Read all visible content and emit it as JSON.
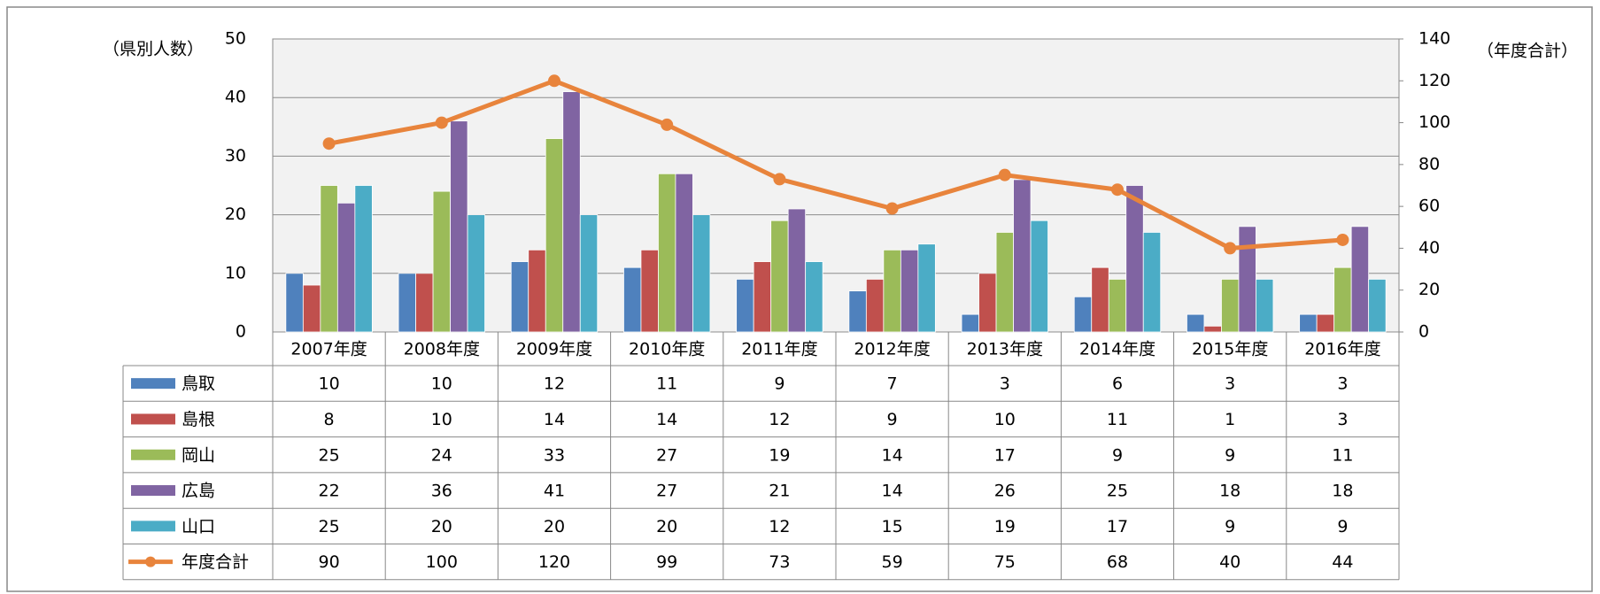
{
  "chart_data": {
    "type": "bar",
    "y_label": "（県別人数）",
    "y2_label": "（年度合計）",
    "categories": [
      "2007年度",
      "2008年度",
      "2009年度",
      "2010年度",
      "2011年度",
      "2012年度",
      "2013年度",
      "2014年度",
      "2015年度",
      "2016年度"
    ],
    "series": [
      {
        "name": "鳥取",
        "color": "#4f81bd",
        "values": [
          10,
          10,
          12,
          11,
          9,
          7,
          3,
          6,
          3,
          3
        ]
      },
      {
        "name": "島根",
        "color": "#c0504d",
        "values": [
          8,
          10,
          14,
          14,
          12,
          9,
          10,
          11,
          1,
          3
        ]
      },
      {
        "name": "岡山",
        "color": "#9bbb59",
        "values": [
          25,
          24,
          33,
          27,
          19,
          14,
          17,
          9,
          9,
          11
        ]
      },
      {
        "name": "広島",
        "color": "#8064a2",
        "values": [
          22,
          36,
          41,
          27,
          21,
          14,
          26,
          25,
          18,
          18
        ]
      },
      {
        "name": "山口",
        "color": "#4bacc6",
        "values": [
          25,
          20,
          20,
          20,
          12,
          15,
          19,
          17,
          9,
          9
        ]
      },
      {
        "name": "年度合計",
        "color": "#e8843c",
        "type": "line",
        "axis": "y2",
        "values": [
          90,
          100,
          120,
          99,
          73,
          59,
          75,
          68,
          40,
          44
        ]
      }
    ],
    "ylim": [
      0,
      50
    ],
    "yticks": [
      0,
      10,
      20,
      30,
      40,
      50
    ],
    "y2lim": [
      0,
      140
    ],
    "y2ticks": [
      0,
      20,
      40,
      60,
      80,
      100,
      120,
      140
    ],
    "grid": true
  }
}
